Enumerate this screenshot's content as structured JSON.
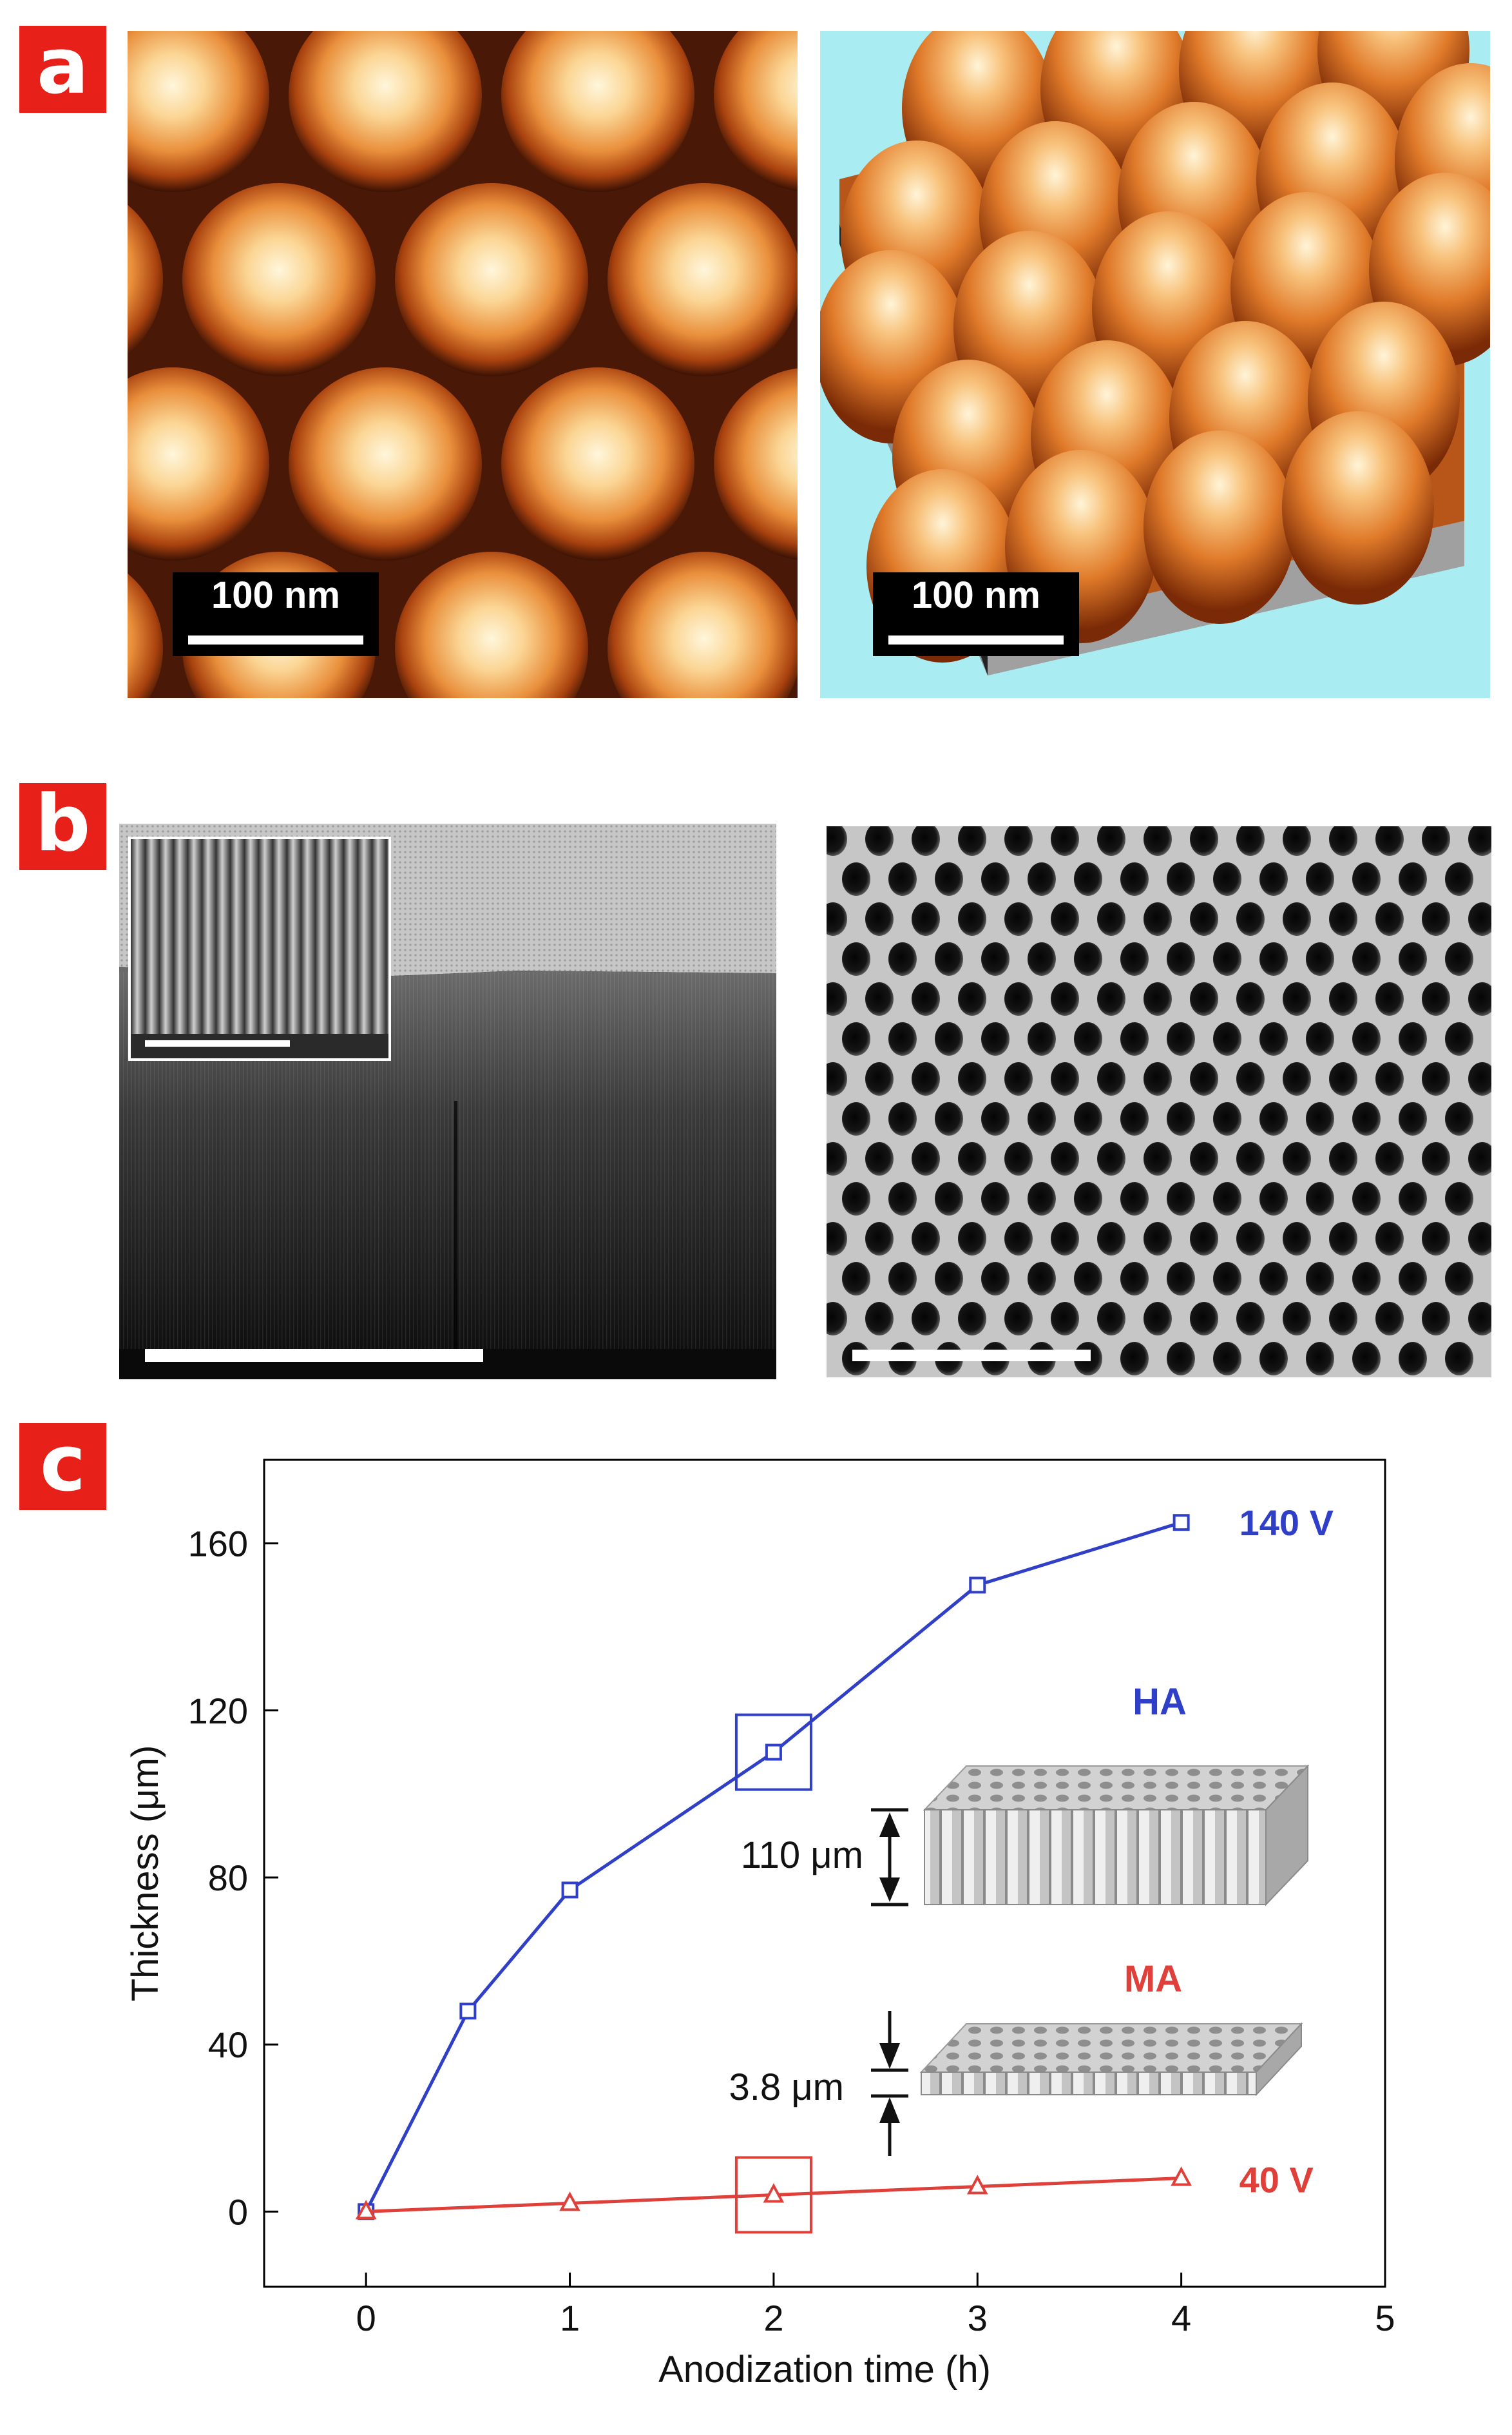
{
  "panels": {
    "a": {
      "label": "a",
      "left_scalebar": "100 nm",
      "right_scalebar": "100 nm"
    },
    "b": {
      "label": "b"
    },
    "c": {
      "label": "c"
    }
  },
  "chart_data": {
    "type": "line",
    "title": "",
    "xlabel": "Anodization time (h)",
    "ylabel": "Thickness (μm)",
    "xlim": [
      -0.5,
      5
    ],
    "ylim": [
      -18,
      180
    ],
    "xticks": [
      0,
      1,
      2,
      3,
      4,
      5
    ],
    "yticks": [
      0,
      40,
      80,
      120,
      160
    ],
    "grid": false,
    "series": [
      {
        "name": "140 V",
        "marker": "square",
        "color": "#2f3fc8",
        "x": [
          0,
          0.5,
          1,
          2,
          3,
          4
        ],
        "y": [
          0,
          48,
          77,
          110,
          150,
          165
        ]
      },
      {
        "name": "40 V",
        "marker": "triangle",
        "color": "#e0403a",
        "x": [
          0,
          1,
          2,
          3,
          4
        ],
        "y": [
          0,
          2,
          4,
          6,
          8
        ]
      }
    ],
    "annotations": {
      "ha_label": "HA",
      "ma_label": "MA",
      "ha_thickness": "110 μm",
      "ma_thickness": "3.8 μm",
      "ha_color": "#2f3fc8",
      "ma_color": "#e0403a",
      "highlight_x": 2
    }
  }
}
